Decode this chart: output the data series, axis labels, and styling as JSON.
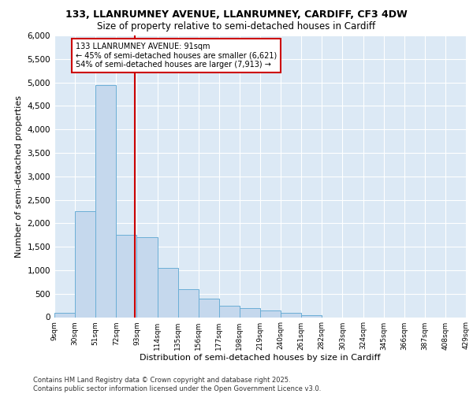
{
  "title_line1": "133, LLANRUMNEY AVENUE, LLANRUMNEY, CARDIFF, CF3 4DW",
  "title_line2": "Size of property relative to semi-detached houses in Cardiff",
  "xlabel": "Distribution of semi-detached houses by size in Cardiff",
  "ylabel": "Number of semi-detached properties",
  "footnote": "Contains HM Land Registry data © Crown copyright and database right 2025.\nContains public sector information licensed under the Open Government Licence v3.0.",
  "bar_edges": [
    9,
    30,
    51,
    72,
    93,
    114,
    135,
    156,
    177,
    198,
    219,
    240,
    261,
    282,
    303,
    324,
    345,
    366,
    387,
    408,
    429
  ],
  "bar_heights": [
    100,
    2250,
    4950,
    1750,
    1700,
    1050,
    600,
    400,
    250,
    200,
    150,
    100,
    50,
    0,
    0,
    0,
    0,
    0,
    0,
    0
  ],
  "bar_color": "#c5d8ed",
  "bar_edge_color": "#6baed6",
  "property_size": 91,
  "property_label": "133 LLANRUMNEY AVENUE: 91sqm",
  "smaller_pct": "45% of semi-detached houses are smaller (6,621)",
  "larger_pct": "54% of semi-detached houses are larger (7,913)",
  "vline_color": "#cc0000",
  "ylim": [
    0,
    6000
  ],
  "yticks": [
    0,
    500,
    1000,
    1500,
    2000,
    2500,
    3000,
    3500,
    4000,
    4500,
    5000,
    5500,
    6000
  ],
  "plot_bg_color": "#dce9f5"
}
